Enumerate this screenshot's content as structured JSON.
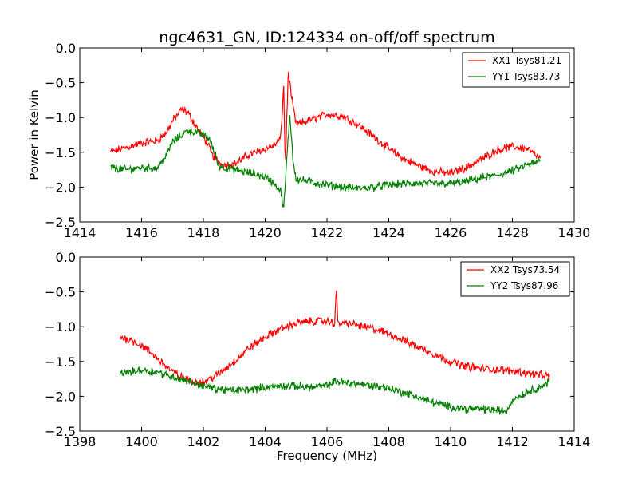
{
  "figure": {
    "title": "ngc4631_GN, ID:124334 on-off/off spectrum",
    "xlabel": "Frequency (MHz)",
    "ylabel": "Power in Kelvin"
  },
  "colors": {
    "xx": "#ff0000",
    "yy": "#008000",
    "frame": "#000000",
    "background": "#ffffff"
  },
  "chart_data": [
    {
      "type": "line",
      "title": "ngc4631_GN, ID:124334 on-off/off spectrum",
      "xlabel": "",
      "ylabel": "Power in Kelvin",
      "xlim": [
        1414,
        1430
      ],
      "ylim": [
        -2.5,
        0.0
      ],
      "xticks": [
        1414,
        1416,
        1418,
        1420,
        1422,
        1424,
        1426,
        1428,
        1430
      ],
      "yticks": [
        0.0,
        -0.5,
        -1.0,
        -1.5,
        -2.0,
        -2.5
      ],
      "xtick_labels": [
        "1414",
        "1416",
        "1418",
        "1420",
        "1422",
        "1424",
        "1426",
        "1428",
        "1430"
      ],
      "ytick_labels": [
        "0.0",
        "−0.5",
        "−1.0",
        "−1.5",
        "−2.0",
        "−2.5"
      ],
      "grid": false,
      "legend_position": "top-right",
      "series": [
        {
          "name": "XX1 Tsys81.21",
          "color": "#ff0000",
          "points": [
            [
              1415.0,
              -1.5
            ],
            [
              1415.5,
              -1.43
            ],
            [
              1416.0,
              -1.37
            ],
            [
              1416.5,
              -1.33
            ],
            [
              1416.8,
              -1.22
            ],
            [
              1417.0,
              -1.05
            ],
            [
              1417.3,
              -0.88
            ],
            [
              1417.5,
              -0.93
            ],
            [
              1417.8,
              -1.15
            ],
            [
              1418.1,
              -1.35
            ],
            [
              1418.3,
              -1.55
            ],
            [
              1418.6,
              -1.68
            ],
            [
              1419.0,
              -1.67
            ],
            [
              1419.5,
              -1.53
            ],
            [
              1420.0,
              -1.45
            ],
            [
              1420.3,
              -1.4
            ],
            [
              1420.5,
              -1.3
            ],
            [
              1420.6,
              -0.55
            ],
            [
              1420.65,
              -1.72
            ],
            [
              1420.75,
              -0.32
            ],
            [
              1420.85,
              -0.7
            ],
            [
              1421.0,
              -1.1
            ],
            [
              1421.5,
              -1.03
            ],
            [
              1422.0,
              -0.95
            ],
            [
              1422.5,
              -0.98
            ],
            [
              1423.0,
              -1.1
            ],
            [
              1423.5,
              -1.27
            ],
            [
              1424.0,
              -1.45
            ],
            [
              1424.5,
              -1.6
            ],
            [
              1425.0,
              -1.7
            ],
            [
              1425.5,
              -1.78
            ],
            [
              1426.0,
              -1.8
            ],
            [
              1426.5,
              -1.72
            ],
            [
              1427.0,
              -1.6
            ],
            [
              1427.5,
              -1.47
            ],
            [
              1428.0,
              -1.42
            ],
            [
              1428.5,
              -1.45
            ],
            [
              1428.9,
              -1.6
            ]
          ]
        },
        {
          "name": "YY1 Tsys83.73",
          "color": "#008000",
          "points": [
            [
              1415.0,
              -1.72
            ],
            [
              1415.5,
              -1.75
            ],
            [
              1416.0,
              -1.72
            ],
            [
              1416.5,
              -1.73
            ],
            [
              1416.8,
              -1.55
            ],
            [
              1417.0,
              -1.35
            ],
            [
              1417.5,
              -1.18
            ],
            [
              1418.0,
              -1.25
            ],
            [
              1418.2,
              -1.3
            ],
            [
              1418.5,
              -1.7
            ],
            [
              1419.0,
              -1.75
            ],
            [
              1419.5,
              -1.8
            ],
            [
              1420.0,
              -1.85
            ],
            [
              1420.3,
              -1.95
            ],
            [
              1420.5,
              -2.05
            ],
            [
              1420.6,
              -2.32
            ],
            [
              1420.7,
              -1.6
            ],
            [
              1420.8,
              -0.95
            ],
            [
              1420.9,
              -1.6
            ],
            [
              1421.0,
              -1.88
            ],
            [
              1421.5,
              -1.93
            ],
            [
              1422.0,
              -1.97
            ],
            [
              1422.5,
              -2.0
            ],
            [
              1423.0,
              -2.02
            ],
            [
              1423.5,
              -2.0
            ],
            [
              1424.0,
              -1.97
            ],
            [
              1424.5,
              -1.95
            ],
            [
              1425.0,
              -1.95
            ],
            [
              1425.5,
              -1.95
            ],
            [
              1426.0,
              -1.95
            ],
            [
              1426.5,
              -1.92
            ],
            [
              1427.0,
              -1.87
            ],
            [
              1427.5,
              -1.83
            ],
            [
              1428.0,
              -1.77
            ],
            [
              1428.5,
              -1.68
            ],
            [
              1428.9,
              -1.63
            ]
          ]
        }
      ]
    },
    {
      "type": "line",
      "title": "",
      "xlabel": "Frequency (MHz)",
      "ylabel": "",
      "xlim": [
        1398,
        1414
      ],
      "ylim": [
        -2.5,
        0.0
      ],
      "xticks": [
        1398,
        1400,
        1402,
        1404,
        1406,
        1408,
        1410,
        1412,
        1414
      ],
      "yticks": [
        0.0,
        -0.5,
        -1.0,
        -1.5,
        -2.0,
        -2.5
      ],
      "xtick_labels": [
        "1398",
        "1400",
        "1402",
        "1404",
        "1406",
        "1408",
        "1410",
        "1412",
        "1414"
      ],
      "ytick_labels": [
        "0.0",
        "−0.5",
        "−1.0",
        "−1.5",
        "−2.0",
        "−2.5"
      ],
      "grid": false,
      "legend_position": "top-right",
      "series": [
        {
          "name": "XX2 Tsys73.54",
          "color": "#ff0000",
          "points": [
            [
              1399.3,
              -1.15
            ],
            [
              1399.7,
              -1.2
            ],
            [
              1400.0,
              -1.27
            ],
            [
              1400.5,
              -1.45
            ],
            [
              1401.0,
              -1.65
            ],
            [
              1401.5,
              -1.77
            ],
            [
              1402.0,
              -1.8
            ],
            [
              1402.5,
              -1.68
            ],
            [
              1403.0,
              -1.5
            ],
            [
              1403.5,
              -1.3
            ],
            [
              1404.0,
              -1.15
            ],
            [
              1404.5,
              -1.03
            ],
            [
              1405.0,
              -0.95
            ],
            [
              1405.5,
              -0.92
            ],
            [
              1406.0,
              -0.92
            ],
            [
              1406.25,
              -0.95
            ],
            [
              1406.3,
              -0.42
            ],
            [
              1406.35,
              -0.95
            ],
            [
              1406.7,
              -0.95
            ],
            [
              1407.0,
              -0.98
            ],
            [
              1407.5,
              -1.03
            ],
            [
              1408.0,
              -1.1
            ],
            [
              1408.5,
              -1.2
            ],
            [
              1409.0,
              -1.3
            ],
            [
              1409.5,
              -1.4
            ],
            [
              1410.0,
              -1.5
            ],
            [
              1410.5,
              -1.57
            ],
            [
              1411.0,
              -1.6
            ],
            [
              1411.5,
              -1.62
            ],
            [
              1412.0,
              -1.63
            ],
            [
              1412.5,
              -1.67
            ],
            [
              1413.0,
              -1.7
            ],
            [
              1413.2,
              -1.72
            ]
          ]
        },
        {
          "name": "YY2 Tsys87.96",
          "color": "#008000",
          "points": [
            [
              1399.3,
              -1.67
            ],
            [
              1399.7,
              -1.65
            ],
            [
              1400.0,
              -1.62
            ],
            [
              1400.5,
              -1.65
            ],
            [
              1401.0,
              -1.72
            ],
            [
              1401.5,
              -1.78
            ],
            [
              1402.0,
              -1.85
            ],
            [
              1402.5,
              -1.9
            ],
            [
              1403.0,
              -1.92
            ],
            [
              1403.5,
              -1.9
            ],
            [
              1404.0,
              -1.87
            ],
            [
              1404.5,
              -1.85
            ],
            [
              1405.0,
              -1.85
            ],
            [
              1405.5,
              -1.87
            ],
            [
              1406.0,
              -1.85
            ],
            [
              1406.3,
              -1.78
            ],
            [
              1406.5,
              -1.8
            ],
            [
              1407.0,
              -1.82
            ],
            [
              1407.5,
              -1.85
            ],
            [
              1408.0,
              -1.88
            ],
            [
              1408.5,
              -1.95
            ],
            [
              1409.0,
              -2.02
            ],
            [
              1409.5,
              -2.1
            ],
            [
              1410.0,
              -2.15
            ],
            [
              1410.5,
              -2.18
            ],
            [
              1411.0,
              -2.18
            ],
            [
              1411.5,
              -2.2
            ],
            [
              1411.8,
              -2.22
            ],
            [
              1412.0,
              -2.05
            ],
            [
              1412.5,
              -1.93
            ],
            [
              1413.0,
              -1.85
            ],
            [
              1413.2,
              -1.78
            ]
          ]
        }
      ]
    }
  ]
}
